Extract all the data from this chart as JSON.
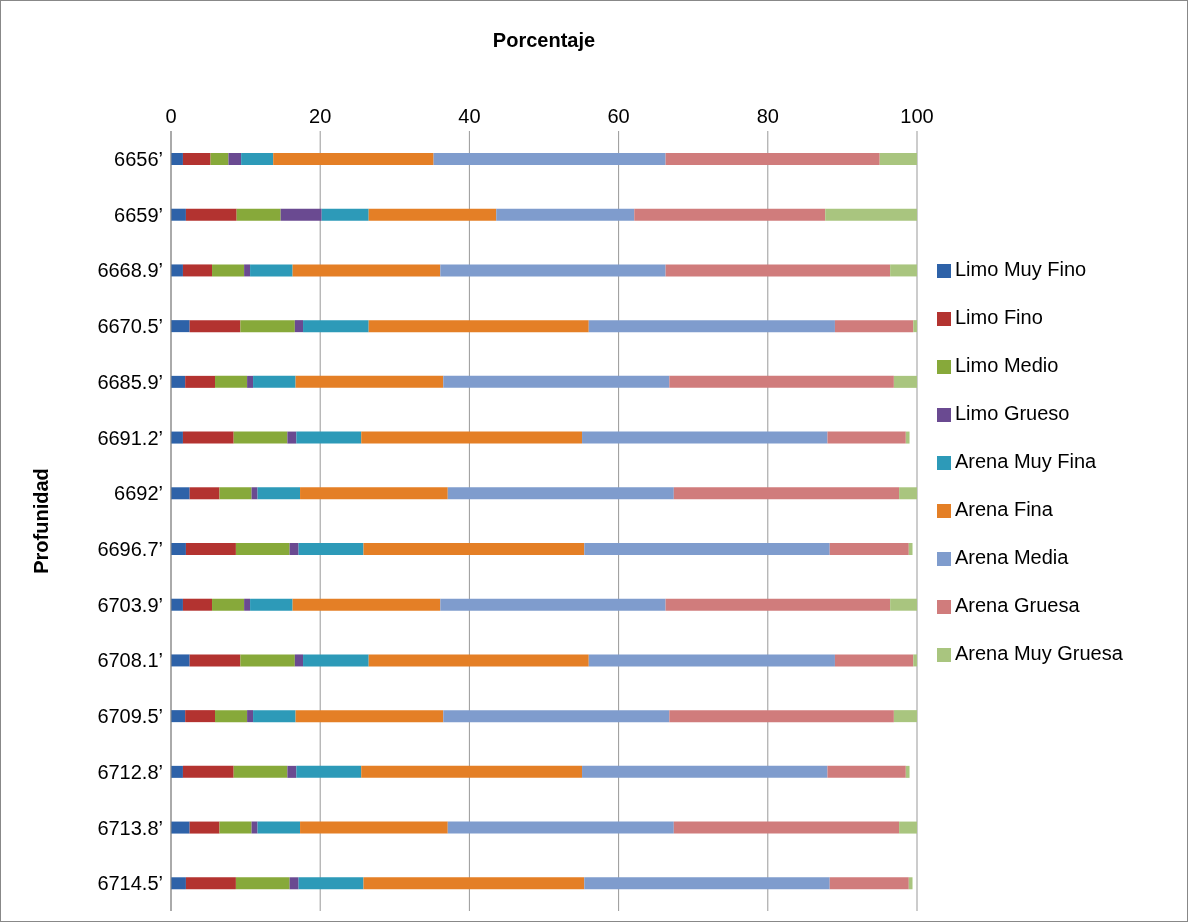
{
  "chart_data": {
    "type": "bar",
    "orientation": "horizontal",
    "stacked": true,
    "xlabel": "Porcentaje",
    "ylabel": "Profunidad",
    "categories": [
      "6656’",
      "6659’",
      "6668.9’",
      "6670.5’",
      "6685.9’",
      "6691.2’",
      "6692’",
      "6696.7’",
      "6703.9’",
      "6708.1’",
      "6709.5’",
      "6712.8’",
      "6713.8’",
      "6714.5’"
    ],
    "xlim": [
      0,
      100
    ],
    "xticks": [
      0,
      20,
      40,
      60,
      80,
      100
    ],
    "grid": "x",
    "legend": "right",
    "series": [
      {
        "name": "Limo Muy Fino",
        "color": "#2e62a8",
        "values": [
          1.6,
          2.0,
          1.6,
          2.5,
          1.9,
          1.6,
          2.5,
          2.0,
          1.6,
          2.5,
          1.9,
          1.6,
          2.5,
          2.0
        ]
      },
      {
        "name": "Limo Fino",
        "color": "#b33330",
        "values": [
          3.7,
          6.8,
          3.9,
          6.8,
          4.0,
          6.8,
          4.0,
          6.7,
          3.9,
          6.8,
          4.0,
          6.8,
          4.0,
          6.7
        ]
      },
      {
        "name": "Limo Medio",
        "color": "#87a93a",
        "values": [
          2.4,
          5.9,
          4.3,
          7.3,
          4.3,
          7.2,
          4.3,
          7.2,
          4.3,
          7.3,
          4.3,
          7.2,
          4.3,
          7.2
        ]
      },
      {
        "name": "Limo Grueso",
        "color": "#6a4a91",
        "values": [
          1.7,
          5.5,
          0.8,
          1.1,
          0.8,
          1.2,
          0.8,
          1.2,
          0.8,
          1.1,
          0.8,
          1.2,
          0.8,
          1.2
        ]
      },
      {
        "name": "Arena Muy Fina",
        "color": "#2d9ab8",
        "values": [
          4.3,
          6.3,
          5.7,
          8.8,
          5.7,
          8.7,
          5.7,
          8.7,
          5.7,
          8.8,
          5.7,
          8.7,
          5.7,
          8.7
        ]
      },
      {
        "name": "Arena Fina",
        "color": "#e47f26",
        "values": [
          21.5,
          17.1,
          19.8,
          29.5,
          19.8,
          29.6,
          19.8,
          29.6,
          19.8,
          29.5,
          19.8,
          29.6,
          19.8,
          29.6
        ]
      },
      {
        "name": "Arena Media",
        "color": "#7f9ccd",
        "values": [
          31.1,
          18.5,
          30.2,
          33.0,
          30.3,
          32.9,
          30.3,
          32.9,
          30.2,
          33.0,
          30.3,
          32.9,
          30.3,
          32.9
        ]
      },
      {
        "name": "Arena Gruesa",
        "color": "#d07c7c",
        "values": [
          28.7,
          25.6,
          30.1,
          10.5,
          30.1,
          10.5,
          30.2,
          10.6,
          30.1,
          10.5,
          30.1,
          10.5,
          30.2,
          10.6
        ]
      },
      {
        "name": "Arena Muy Gruesa",
        "color": "#a9c57f",
        "values": [
          5.0,
          12.3,
          3.6,
          0.5,
          3.1,
          0.5,
          2.5,
          0.5,
          3.6,
          0.5,
          3.1,
          0.5,
          2.5,
          0.5
        ]
      }
    ]
  }
}
